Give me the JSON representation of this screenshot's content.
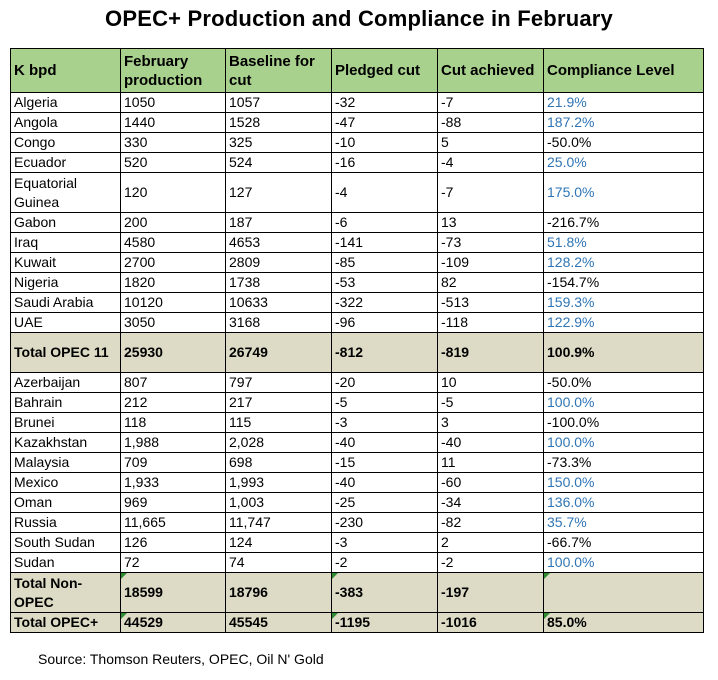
{
  "chart_data": {
    "type": "table",
    "title": "OPEC+ Production and Compliance in February",
    "columns": [
      "K bpd",
      "February production",
      "Baseline for cut",
      "Pledged cut",
      "Cut achieved",
      "Compliance Level"
    ],
    "rows": [
      {
        "name": "Algeria",
        "production": "1050",
        "baseline": "1057",
        "pledged": "-32",
        "achieved": "-7",
        "compliance": "21.9%",
        "highlight": true
      },
      {
        "name": "Angola",
        "production": "1440",
        "baseline": "1528",
        "pledged": "-47",
        "achieved": "-88",
        "compliance": "187.2%",
        "highlight": true
      },
      {
        "name": "Congo",
        "production": "330",
        "baseline": "325",
        "pledged": "-10",
        "achieved": "5",
        "compliance": "-50.0%",
        "highlight": false
      },
      {
        "name": "Ecuador",
        "production": "520",
        "baseline": "524",
        "pledged": "-16",
        "achieved": "-4",
        "compliance": "25.0%",
        "highlight": true
      },
      {
        "name": "Equatorial Guinea",
        "production": "120",
        "baseline": "127",
        "pledged": "-4",
        "achieved": "-7",
        "compliance": "175.0%",
        "highlight": true,
        "tall": true
      },
      {
        "name": "Gabon",
        "production": "200",
        "baseline": "187",
        "pledged": "-6",
        "achieved": "13",
        "compliance": "-216.7%",
        "highlight": false
      },
      {
        "name": "Iraq",
        "production": "4580",
        "baseline": "4653",
        "pledged": "-141",
        "achieved": "-73",
        "compliance": "51.8%",
        "highlight": true
      },
      {
        "name": "Kuwait",
        "production": "2700",
        "baseline": "2809",
        "pledged": "-85",
        "achieved": "-109",
        "compliance": "128.2%",
        "highlight": true
      },
      {
        "name": "Nigeria",
        "production": "1820",
        "baseline": "1738",
        "pledged": "-53",
        "achieved": "82",
        "compliance": "-154.7%",
        "highlight": false
      },
      {
        "name": "Saudi Arabia",
        "production": "10120",
        "baseline": "10633",
        "pledged": "-322",
        "achieved": "-513",
        "compliance": "159.3%",
        "highlight": true
      },
      {
        "name": "UAE",
        "production": "3050",
        "baseline": "3168",
        "pledged": "-96",
        "achieved": "-118",
        "compliance": "122.9%",
        "highlight": true
      },
      {
        "name": "Total OPEC 11",
        "production": "25930",
        "baseline": "26749",
        "pledged": "-812",
        "achieved": "-819",
        "compliance": "100.9%",
        "highlight": false,
        "total": true,
        "tall": true
      },
      {
        "name": "Azerbaijan",
        "production": "807",
        "baseline": "797",
        "pledged": "-20",
        "achieved": "10",
        "compliance": "-50.0%",
        "highlight": false
      },
      {
        "name": "Bahrain",
        "production": "212",
        "baseline": "217",
        "pledged": "-5",
        "achieved": "-5",
        "compliance": "100.0%",
        "highlight": true
      },
      {
        "name": "Brunei",
        "production": "118",
        "baseline": "115",
        "pledged": "-3",
        "achieved": "3",
        "compliance": "-100.0%",
        "highlight": false
      },
      {
        "name": "Kazakhstan",
        "production": "1,988",
        "baseline": "2,028",
        "pledged": "-40",
        "achieved": "-40",
        "compliance": "100.0%",
        "highlight": true
      },
      {
        "name": "Malaysia",
        "production": "709",
        "baseline": "698",
        "pledged": "-15",
        "achieved": "11",
        "compliance": "-73.3%",
        "highlight": false
      },
      {
        "name": "Mexico",
        "production": "1,933",
        "baseline": "1,993",
        "pledged": "-40",
        "achieved": "-60",
        "compliance": "150.0%",
        "highlight": true
      },
      {
        "name": "Oman",
        "production": "969",
        "baseline": "1,003",
        "pledged": "-25",
        "achieved": "-34",
        "compliance": "136.0%",
        "highlight": true
      },
      {
        "name": "Russia",
        "production": "11,665",
        "baseline": "11,747",
        "pledged": "-230",
        "achieved": "-82",
        "compliance": "35.7%",
        "highlight": true
      },
      {
        "name": "South Sudan",
        "production": "126",
        "baseline": "124",
        "pledged": "-3",
        "achieved": "2",
        "compliance": "-66.7%",
        "highlight": false
      },
      {
        "name": "Sudan",
        "production": "72",
        "baseline": "74",
        "pledged": "-2",
        "achieved": "-2",
        "compliance": "100.0%",
        "highlight": true
      },
      {
        "name": "Total Non-OPEC",
        "production": "18599",
        "baseline": "18796",
        "pledged": "-383",
        "achieved": "-197",
        "compliance": "",
        "highlight": false,
        "total": true,
        "tall": true
      },
      {
        "name": "Total OPEC+",
        "production": "44529",
        "baseline": "45545",
        "pledged": "-1195",
        "achieved": "-1016",
        "compliance": "85.0%",
        "highlight": false,
        "total": true
      }
    ],
    "source": "Source: Thomson Reuters, OPEC, Oil N' Gold"
  },
  "colors": {
    "header_bg": "#a9d18e",
    "total_bg": "#dddbc5",
    "highlight_text": "#2f75b5"
  }
}
